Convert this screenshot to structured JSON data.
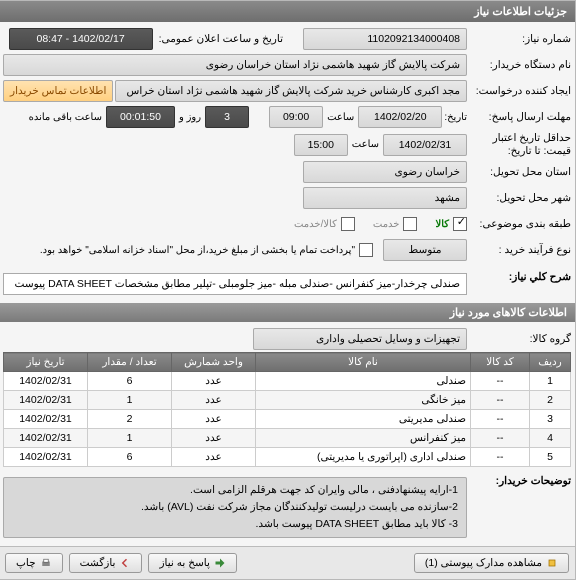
{
  "panel": {
    "title": "جزئیات اطلاعات نیاز"
  },
  "fields": {
    "need_no": {
      "label": "شماره نیاز:",
      "value": "1102092134000408"
    },
    "public_datetime": {
      "label": "تاریخ و ساعت اعلان عمومی:",
      "value": "1402/02/17 - 08:47"
    },
    "buyer_org": {
      "label": "نام دستگاه خریدار:",
      "value": "شرکت پالایش گاز شهید هاشمی نژاد   استان خراسان رضوی"
    },
    "req_creator": {
      "label": "ایجاد کننده درخواست:",
      "value": "مجد اکبری کارشناس خرید شرکت پالایش گاز شهید هاشمی نژاد   استان خراس"
    },
    "buyer_contact": {
      "label": "اطلاعات تماس خریدار"
    },
    "reply_deadline": {
      "label": "مهلت ارسال پاسخ:",
      "date_label": "تاریخ:",
      "date": "1402/02/20",
      "time_label": "ساعت",
      "time": "09:00",
      "days": "3",
      "remain_label": "روز و",
      "remain_time": "00:01:50",
      "remain_suffix": "ساعت باقی مانده"
    },
    "validity": {
      "label": "حداقل تاریخ اعتبار",
      "sub": "قیمت: تا تاریخ:",
      "date": "1402/02/31",
      "time_label": "ساعت",
      "time": "15:00"
    },
    "province": {
      "label": "استان محل تحویل:",
      "value": "خراسان رضوی"
    },
    "city": {
      "label": "شهر محل تحویل:",
      "value": "مشهد"
    },
    "category": {
      "label": "طبقه بندی موضوعی:",
      "goods_label": "کالا",
      "goods_checked": true,
      "service_label": "خدمت",
      "service_checked": false,
      "goods_service_label": "کالا/خدمت",
      "goods_service_checked": false
    },
    "process": {
      "label": "نوع فرآیند خرید :",
      "value": "متوسط",
      "note": "\"پرداخت تمام یا بخشی از مبلغ خرید،از محل \"اسناد خزانه اسلامی\" خواهد بود."
    },
    "title": {
      "label": "شرح کلي نياز:",
      "value": "صندلی چرخدار-میز کنفرانس -صندلی مبله -میز جلومبلی -تپلیر مطابق مشخصات DATA SHEET پیوست"
    }
  },
  "items_section": {
    "title": "اطلاعات کالاهای مورد نیاز",
    "group_label": "گروه کالا:",
    "group_value": "تجهیزات و وسایل تحصیلی واداری"
  },
  "table": {
    "headers": [
      "ردیف",
      "کد کالا",
      "نام کالا",
      "واحد شمارش",
      "تعداد / مقدار",
      "تاریخ نیاز"
    ],
    "rows": [
      [
        "1",
        "--",
        "صندلی",
        "عدد",
        "6",
        "1402/02/31"
      ],
      [
        "2",
        "--",
        "میز خانگی",
        "عدد",
        "1",
        "1402/02/31"
      ],
      [
        "3",
        "--",
        "صندلی مدیریتی",
        "عدد",
        "2",
        "1402/02/31"
      ],
      [
        "4",
        "--",
        "میز کنفرانس",
        "عدد",
        "1",
        "1402/02/31"
      ],
      [
        "5",
        "--",
        "صندلی اداری (اپراتوری یا مدیریتی)",
        "عدد",
        "6",
        "1402/02/31"
      ]
    ]
  },
  "buyer_notes": {
    "label": "توضیحات خریدار:",
    "line1": "1-ارایه پیشنهادفنی ، مالی وایران کد جهت هرقلم الزامی است.",
    "line2": "2-سازنده می بایست درلیست تولیدکنندگان مجاز شرکت نفت (AVL)  باشد.",
    "line3": "3- کالا باید مطابق DATA SHEET پیوست باشد."
  },
  "footer": {
    "view_attach": "مشاهده مدارک پیوستی (1)",
    "answer": "پاسخ به نیاز",
    "back": "بازگشت",
    "print": "چاپ"
  }
}
